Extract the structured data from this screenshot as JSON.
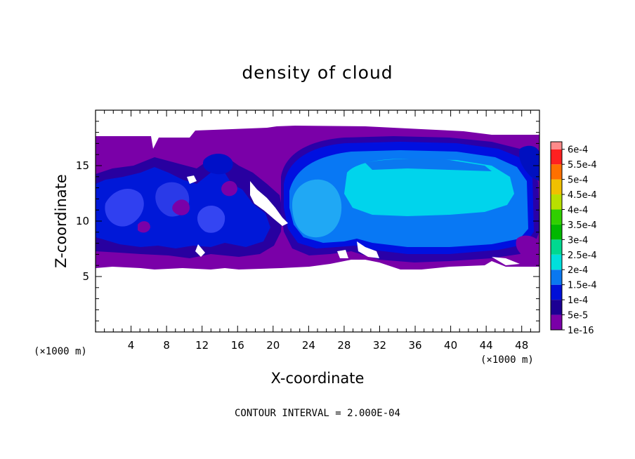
{
  "chart_data": {
    "type": "heatmap",
    "title": "density of cloud",
    "xlabel": "X-coordinate",
    "ylabel": "Z-coordinate",
    "x_unit": "(×1000 m)",
    "z_unit": "(×1000 m)",
    "xlim": [
      0,
      50
    ],
    "ylim": [
      0,
      20
    ],
    "x_ticks": [
      "4",
      "8",
      "12",
      "16",
      "20",
      "24",
      "28",
      "32",
      "36",
      "40",
      "44",
      "48"
    ],
    "y_ticks": [
      "5",
      "10",
      "15"
    ],
    "colorbar": {
      "labels": [
        "1e-16",
        "5e-5",
        "1e-4",
        "1.5e-4",
        "2e-4",
        "2.5e-4",
        "3e-4",
        "3.5e-4",
        "4e-4",
        "4.5e-4",
        "5e-4",
        "5.5e-4",
        "6e-4"
      ],
      "colors": [
        "#7a00a8",
        "#1c0093",
        "#0010d8",
        "#0a78f0",
        "#00e0dc",
        "#00d890",
        "#00b800",
        "#30d000",
        "#b8e000",
        "#f0c000",
        "#ff7000",
        "#ff2020",
        "#ff8a8a"
      ],
      "placement": "right"
    },
    "contour_interval": "CONTOUR INTERVAL = 2.000E-04"
  }
}
